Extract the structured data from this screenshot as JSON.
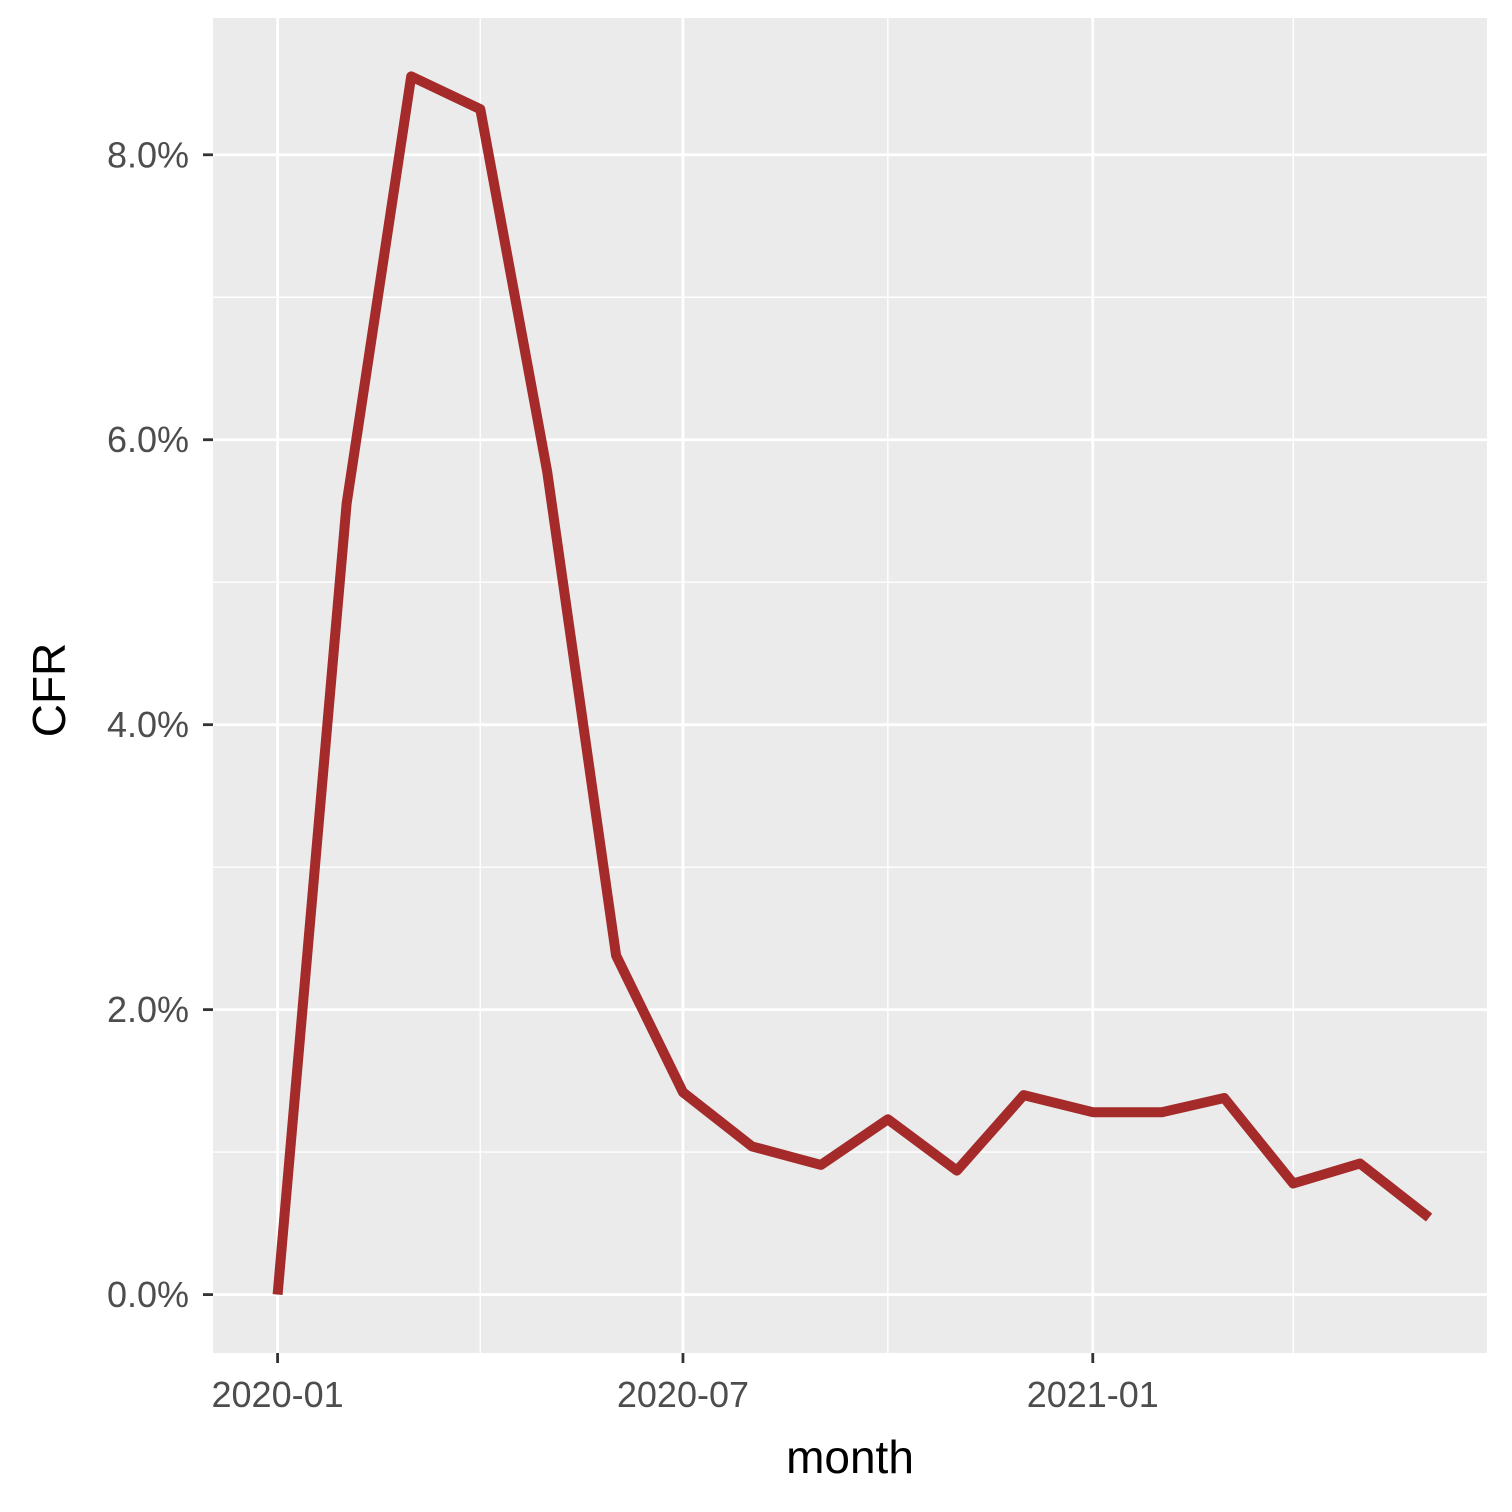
{
  "chart_data": {
    "type": "line",
    "xlabel": "month",
    "ylabel": "CFR",
    "x": [
      "2020-01",
      "2020-02",
      "2020-03",
      "2020-04",
      "2020-05",
      "2020-06",
      "2020-07",
      "2020-08",
      "2020-09",
      "2020-10",
      "2020-11",
      "2020-12",
      "2021-01",
      "2021-02",
      "2021-03",
      "2021-04",
      "2021-05",
      "2021-06"
    ],
    "series": [
      {
        "values": [
          0.0,
          5.55,
          8.55,
          8.32,
          5.78,
          2.38,
          1.42,
          1.04,
          0.91,
          1.23,
          0.87,
          1.4,
          1.28,
          1.28,
          1.38,
          0.78,
          0.92,
          0.54
        ]
      }
    ],
    "x_ticks": [
      {
        "value": "2020-01",
        "label": "2020-01"
      },
      {
        "value": "2020-07",
        "label": "2020-07"
      },
      {
        "value": "2021-01",
        "label": "2021-01"
      }
    ],
    "x_minor_ticks": [
      "2020-04",
      "2020-10",
      "2021-04"
    ],
    "y_ticks": [
      {
        "value": 0,
        "label": "0.0%"
      },
      {
        "value": 2,
        "label": "2.0%"
      },
      {
        "value": 4,
        "label": "4.0%"
      },
      {
        "value": 6,
        "label": "6.0%"
      },
      {
        "value": 8,
        "label": "8.0%"
      }
    ],
    "y_minor_ticks": [
      1,
      3,
      5,
      7
    ],
    "xlim": [
      "2019-12-03",
      "2021-06-27"
    ],
    "ylim": [
      -0.41,
      8.96
    ],
    "y_unit": "percent",
    "grid": true,
    "line_color": "#A52A2A",
    "panel_color": "#EBEBEB",
    "grid_color": "#FFFFFF"
  }
}
